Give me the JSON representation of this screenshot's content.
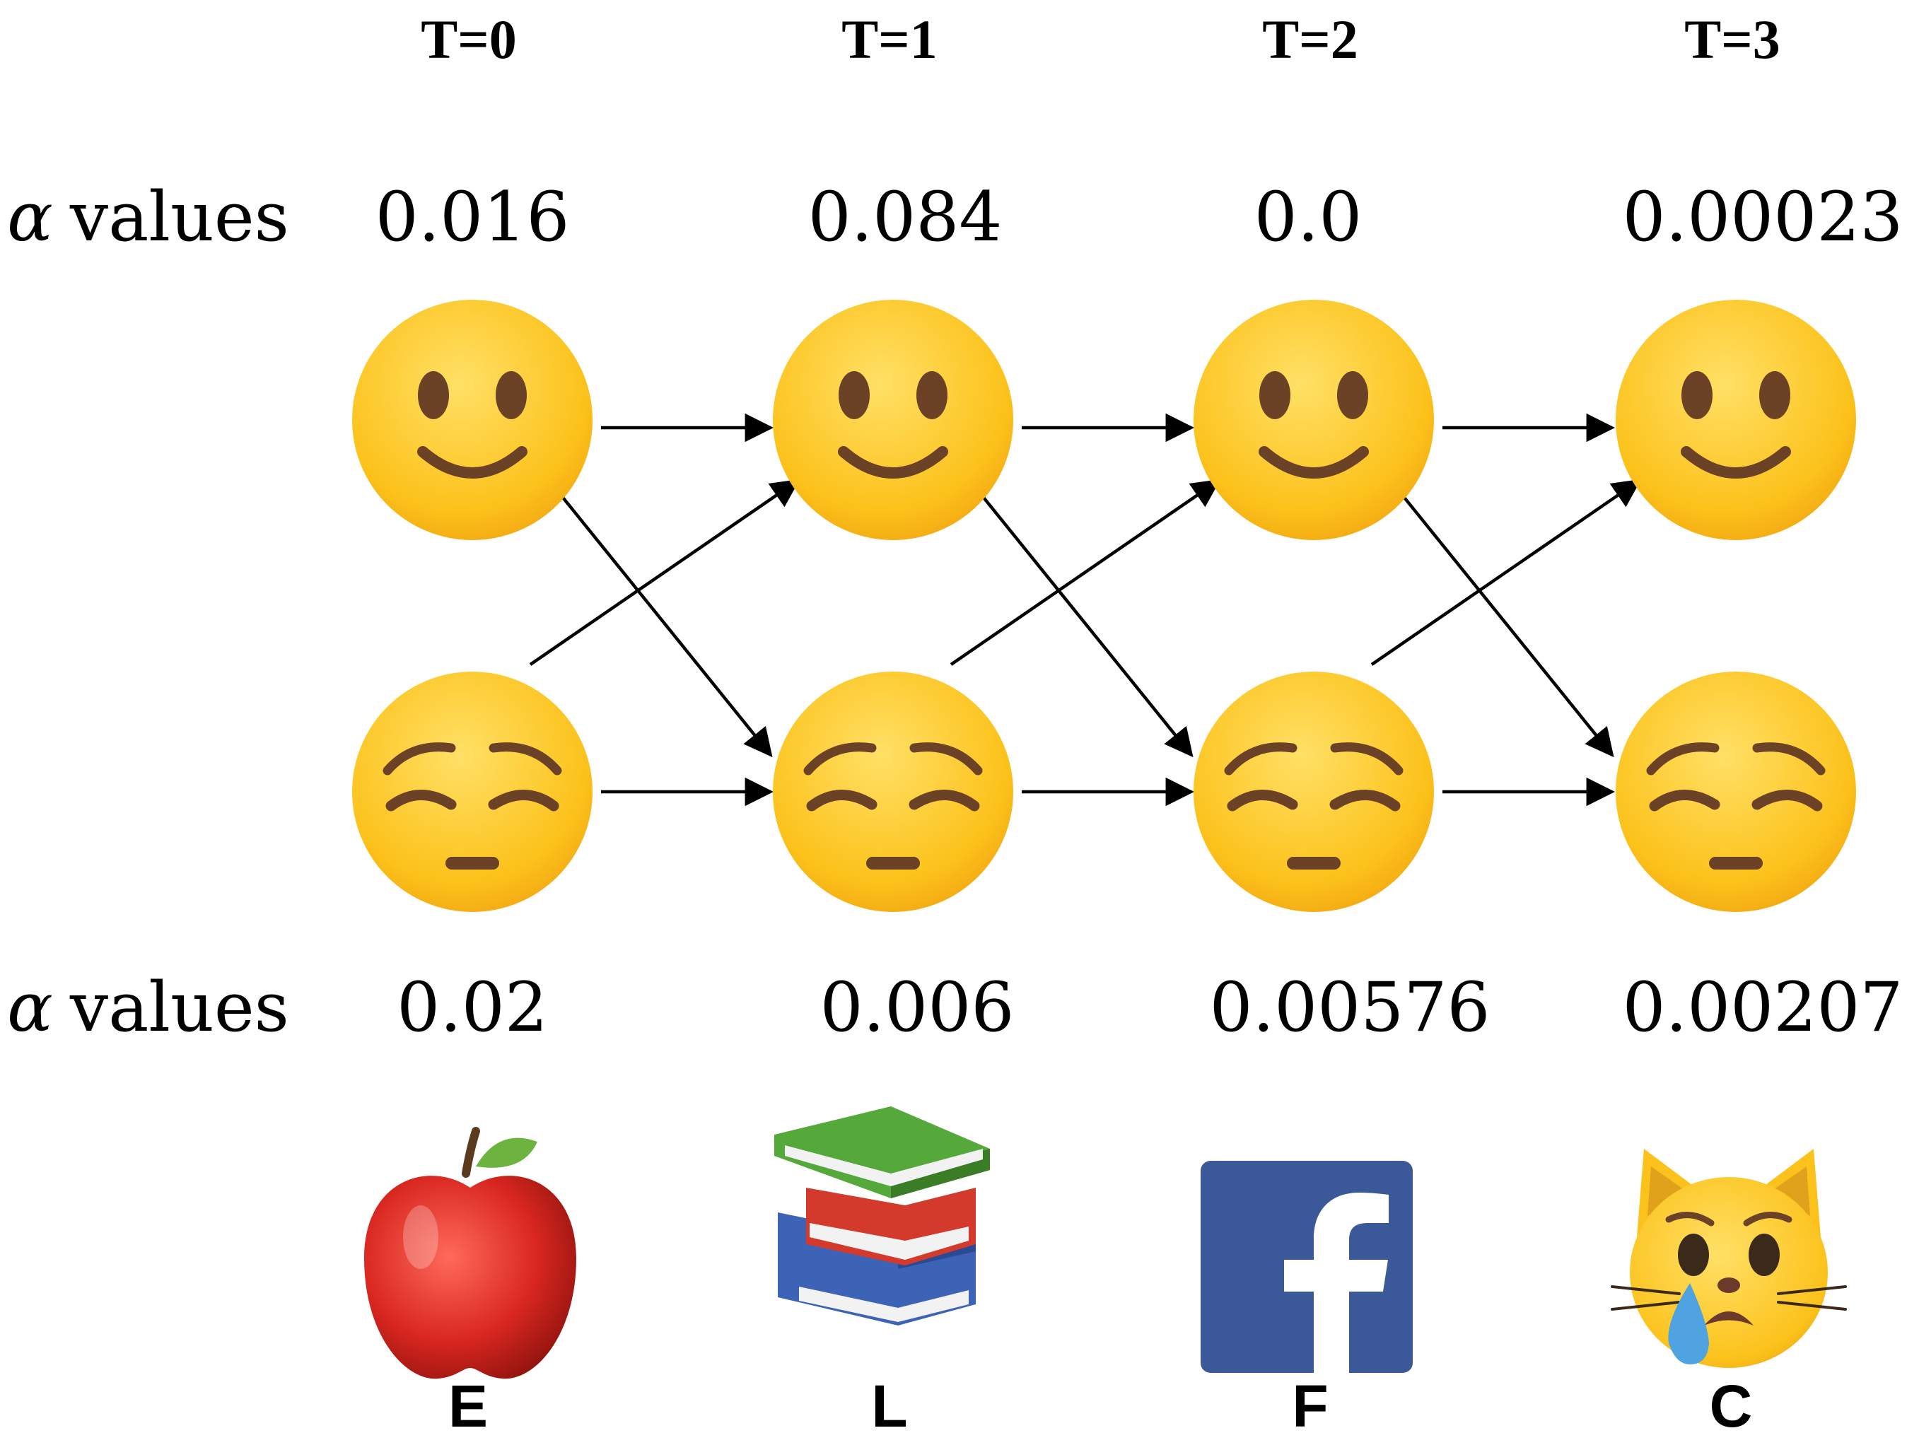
{
  "time_steps": [
    "T=0",
    "T=1",
    "T=2",
    "T=3"
  ],
  "alpha_label": "values",
  "alpha_symbol": "α",
  "happy_alpha_values": [
    "0.016",
    "0.084",
    "0.0",
    "0.00023"
  ],
  "sad_alpha_values": [
    "0.02",
    "0.006",
    "0.00576",
    "0.00207"
  ],
  "observations": [
    {
      "label": "E",
      "icon": "apple-icon"
    },
    {
      "label": "L",
      "icon": "books-icon"
    },
    {
      "label": "F",
      "icon": "facebook-icon"
    },
    {
      "label": "C",
      "icon": "crying-cat-icon"
    }
  ],
  "states": [
    {
      "name": "happy",
      "icon": "slightly-smiling-face-icon"
    },
    {
      "name": "sad",
      "icon": "pensive-face-icon"
    }
  ],
  "colors": {
    "face_yellow": "#fcc21b",
    "face_outline": "#f2a712",
    "feature_brown": "#6b4226",
    "arrow": "#000000",
    "facebook_blue": "#3b5998",
    "apple_red": "#d8261f",
    "tear_blue": "#4fa3e0"
  }
}
